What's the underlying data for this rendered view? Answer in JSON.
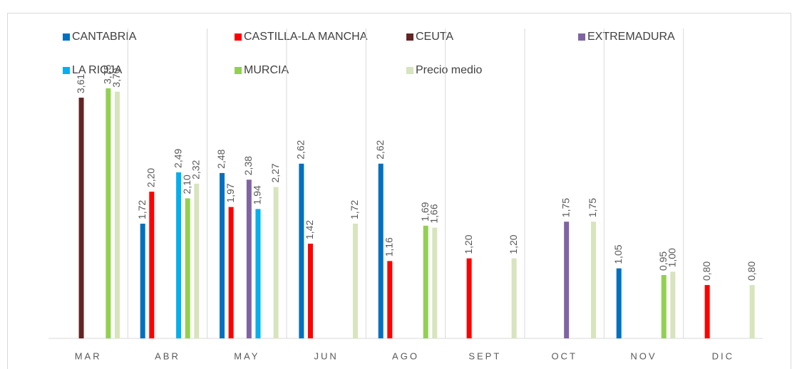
{
  "chart_data": {
    "type": "bar",
    "categories": [
      "MAR",
      "ABR",
      "MAY",
      "JUN",
      "AGO",
      "SEPT",
      "OCT",
      "NOV",
      "DIC"
    ],
    "series": [
      {
        "name": "CANTABRIA",
        "color": "#0070c0",
        "values": [
          null,
          1.72,
          2.48,
          2.62,
          2.62,
          null,
          null,
          1.05,
          null
        ],
        "value_labels": [
          null,
          "1,72",
          "2,48",
          "2,62",
          "2,62",
          null,
          null,
          "1,05",
          null
        ]
      },
      {
        "name": "CASTILLA-LA MANCHA",
        "color": "#ff0000",
        "values": [
          null,
          2.2,
          1.97,
          1.42,
          1.16,
          1.2,
          null,
          null,
          0.8
        ],
        "value_labels": [
          null,
          "2,20",
          "1,97",
          "1,42",
          "1,16",
          "1,20",
          null,
          null,
          "0,80"
        ]
      },
      {
        "name": "CEUTA",
        "color": "#632523",
        "values": [
          3.61,
          null,
          null,
          null,
          null,
          null,
          null,
          null,
          null
        ],
        "value_labels": [
          "3,61",
          null,
          null,
          null,
          null,
          null,
          null,
          null,
          null
        ]
      },
      {
        "name": "EXTREMADURA",
        "color": "#8064a2",
        "values": [
          null,
          null,
          2.38,
          null,
          null,
          null,
          1.75,
          null,
          null
        ],
        "value_labels": [
          null,
          null,
          "2,38",
          null,
          null,
          null,
          "1,75",
          null,
          null
        ]
      },
      {
        "name": "LA RIOJA",
        "color": "#00b0f0",
        "values": [
          null,
          2.49,
          1.94,
          null,
          null,
          null,
          null,
          null,
          null
        ],
        "value_labels": [
          null,
          "2,49",
          "1,94",
          null,
          null,
          null,
          null,
          null,
          null
        ]
      },
      {
        "name": "MURCIA",
        "color": "#92d050",
        "values": [
          3.75,
          2.1,
          null,
          null,
          1.69,
          null,
          null,
          0.95,
          null
        ],
        "value_labels": [
          "3,75",
          "2,10",
          null,
          null,
          "1,69",
          null,
          null,
          "0,95",
          null
        ]
      },
      {
        "name": "Precio medio",
        "color": "#d7e4bd",
        "values": [
          3.7,
          2.32,
          2.27,
          1.72,
          1.66,
          1.2,
          1.75,
          1.0,
          0.8
        ],
        "value_labels": [
          "3,70",
          "2,32",
          "2,27",
          "1,72",
          "1,66",
          "1,20",
          "1,75",
          "1,00",
          "0,80"
        ]
      }
    ],
    "ylim": [
      0,
      4
    ],
    "legend": "top",
    "grid": true
  }
}
